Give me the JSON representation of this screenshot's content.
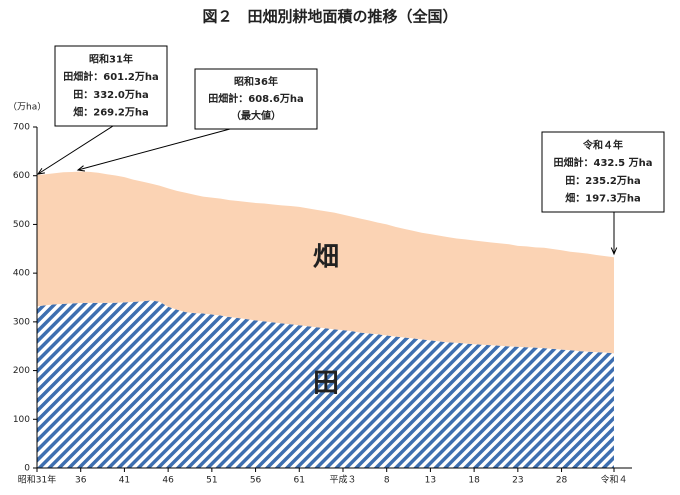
{
  "chart_data": {
    "type": "stacked_area",
    "title": "図２　田畑別耕地面積の推移（全国）",
    "y_label": "（万ha）",
    "categories": [
      "昭和31年",
      null,
      null,
      null,
      null,
      "36",
      null,
      null,
      null,
      null,
      "41",
      null,
      null,
      null,
      null,
      "46",
      null,
      null,
      null,
      null,
      "51",
      null,
      null,
      null,
      null,
      "56",
      null,
      null,
      null,
      null,
      "61",
      null,
      null,
      null,
      null,
      "平成３",
      null,
      null,
      null,
      null,
      "8",
      null,
      null,
      null,
      null,
      "13",
      null,
      null,
      null,
      null,
      "18",
      null,
      null,
      null,
      null,
      "23",
      null,
      null,
      null,
      null,
      "28",
      null,
      null,
      null,
      null,
      null,
      "令和４"
    ],
    "series": [
      {
        "name": "田",
        "color": "#3e6fb0",
        "pattern": "hatch",
        "values": [
          332.0,
          334,
          336,
          337,
          338,
          338.8,
          339,
          339,
          339,
          339.1,
          340,
          341,
          342,
          344.1,
          341.5,
          331,
          325,
          320,
          318,
          317.1,
          315,
          313,
          310,
          308,
          305.5,
          303,
          301,
          299,
          297,
          295.2,
          293,
          291,
          289,
          287,
          284.6,
          283,
          281,
          278,
          276,
          274.5,
          272,
          270,
          268,
          266,
          264.1,
          262,
          260,
          258,
          257,
          255.6,
          254,
          253,
          252,
          251,
          249.6,
          249,
          248,
          247,
          246,
          244.6,
          243,
          242,
          240,
          239,
          237.9,
          237,
          235.2
        ]
      },
      {
        "name": "畑",
        "color": "#fbd3b4",
        "values": [
          269.2,
          269,
          269,
          270,
          269.5,
          269.8,
          269,
          267,
          264,
          261.3,
          257,
          251,
          246,
          239.9,
          238.1,
          243,
          244,
          245,
          243,
          240.1,
          240,
          240,
          240,
          240,
          240.6,
          241,
          242,
          242,
          242,
          242.7,
          243,
          242,
          241,
          240,
          239.7,
          237,
          235,
          234,
          232,
          229.3,
          228,
          225,
          223,
          221,
          218.9,
          218,
          217,
          216,
          214,
          213.6,
          213,
          212,
          211,
          210,
          209.7,
          207,
          207,
          206,
          206,
          205,
          204,
          202,
          202,
          201,
          199.3,
          198,
          197.3
        ]
      }
    ],
    "ylim": [
      0,
      700
    ],
    "yticks": [
      0,
      100,
      200,
      300,
      400,
      500,
      600,
      700
    ],
    "grid": false,
    "annotations": [
      {
        "lines": [
          "昭和31年",
          "田畑計：601.2万ha",
          "田：332.0万ha",
          "畑：269.2万ha"
        ]
      },
      {
        "lines": [
          "昭和36年",
          "田畑計：608.6万ha",
          "（最大値）"
        ]
      },
      {
        "lines": [
          "令和４年",
          "田畑計：432.5 万ha",
          "田：235.2万ha",
          "畑：197.3万ha"
        ]
      }
    ]
  }
}
